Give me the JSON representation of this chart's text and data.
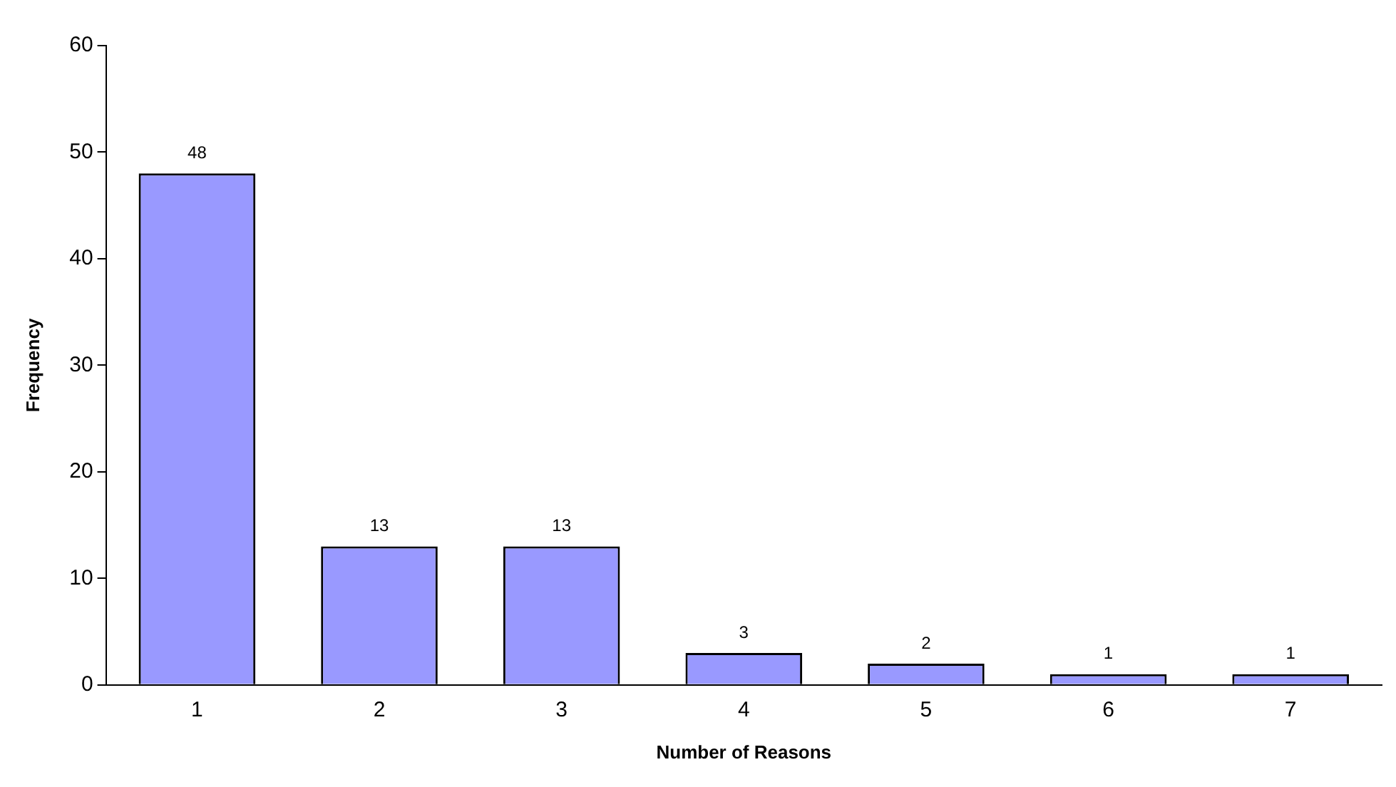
{
  "chart_data": {
    "type": "bar",
    "xlabel": "Number of Reasons",
    "ylabel": "Frequency",
    "categories": [
      "1",
      "2",
      "3",
      "4",
      "5",
      "6",
      "7"
    ],
    "values": [
      48,
      13,
      13,
      3,
      2,
      1,
      1
    ],
    "color": "#9999ff",
    "ylim": [
      0,
      60
    ],
    "yticks": [
      0,
      10,
      20,
      30,
      40,
      50,
      60
    ],
    "grid": false,
    "legend": false,
    "data_labels": true
  }
}
